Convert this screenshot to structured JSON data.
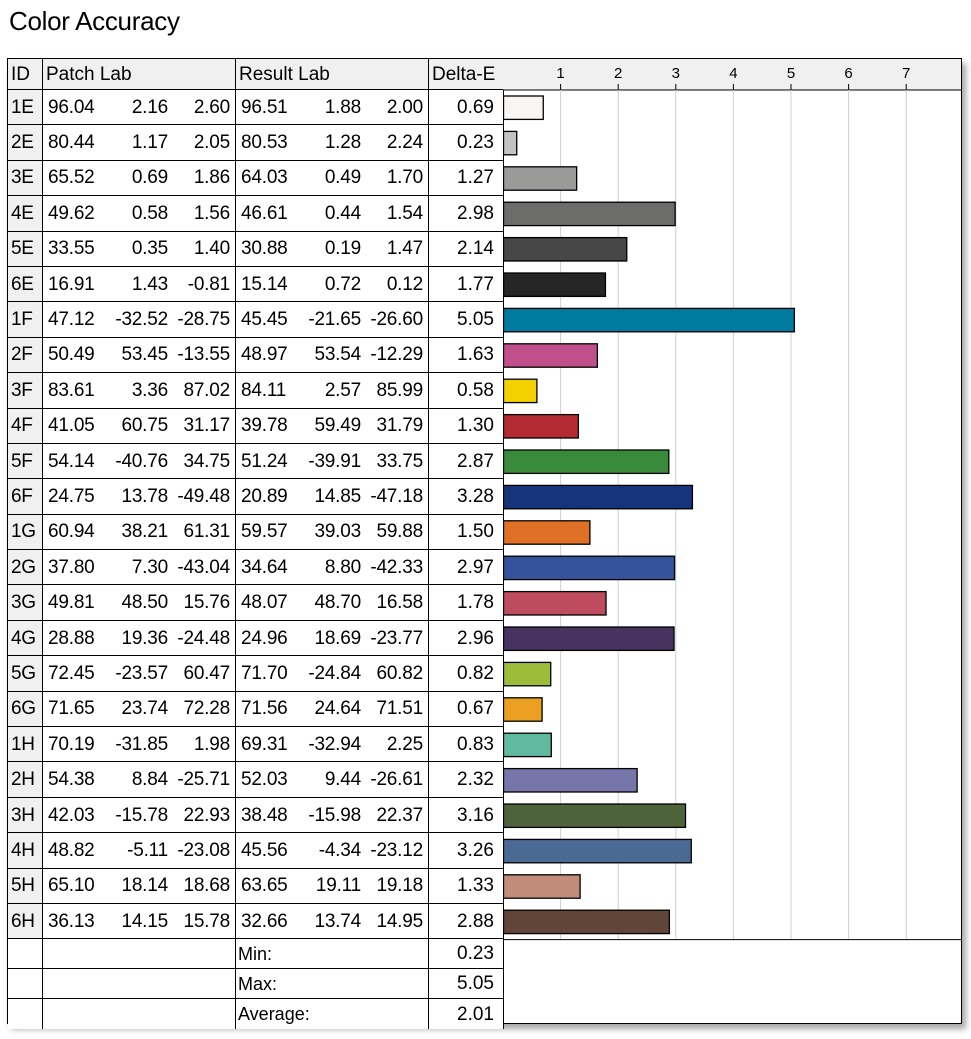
{
  "title": "Color Accuracy",
  "headers": {
    "id": "ID",
    "patch": "Patch Lab",
    "result": "Result Lab",
    "delta": "Delta-E"
  },
  "rows": [
    {
      "id": "1E",
      "patch": [
        "96.04",
        "2.16",
        "2.60"
      ],
      "result": [
        "96.51",
        "1.88",
        "2.00"
      ],
      "de": "0.69",
      "color": "#f8f5f3"
    },
    {
      "id": "2E",
      "patch": [
        "80.44",
        "1.17",
        "2.05"
      ],
      "result": [
        "80.53",
        "1.28",
        "2.24"
      ],
      "de": "0.23",
      "color": "#c4c3c1"
    },
    {
      "id": "3E",
      "patch": [
        "65.52",
        "0.69",
        "1.86"
      ],
      "result": [
        "64.03",
        "0.49",
        "1.70"
      ],
      "de": "1.27",
      "color": "#9a9a98"
    },
    {
      "id": "4E",
      "patch": [
        "49.62",
        "0.58",
        "1.56"
      ],
      "result": [
        "46.61",
        "0.44",
        "1.54"
      ],
      "de": "2.98",
      "color": "#6c6c6b"
    },
    {
      "id": "5E",
      "patch": [
        "33.55",
        "0.35",
        "1.40"
      ],
      "result": [
        "30.88",
        "0.19",
        "1.47"
      ],
      "de": "2.14",
      "color": "#474747"
    },
    {
      "id": "6E",
      "patch": [
        "16.91",
        "1.43",
        "-0.81"
      ],
      "result": [
        "15.14",
        "0.72",
        "0.12"
      ],
      "de": "1.77",
      "color": "#262626"
    },
    {
      "id": "1F",
      "patch": [
        "47.12",
        "-32.52",
        "-28.75"
      ],
      "result": [
        "45.45",
        "-21.65",
        "-26.60"
      ],
      "de": "5.05",
      "color": "#007ba0"
    },
    {
      "id": "2F",
      "patch": [
        "50.49",
        "53.45",
        "-13.55"
      ],
      "result": [
        "48.97",
        "53.54",
        "-12.29"
      ],
      "de": "1.63",
      "color": "#c04f8c"
    },
    {
      "id": "3F",
      "patch": [
        "83.61",
        "3.36",
        "87.02"
      ],
      "result": [
        "84.11",
        "2.57",
        "85.99"
      ],
      "de": "0.58",
      "color": "#f3d100"
    },
    {
      "id": "4F",
      "patch": [
        "41.05",
        "60.75",
        "31.17"
      ],
      "result": [
        "39.78",
        "59.49",
        "31.79"
      ],
      "de": "1.30",
      "color": "#b42a32"
    },
    {
      "id": "5F",
      "patch": [
        "54.14",
        "-40.76",
        "34.75"
      ],
      "result": [
        "51.24",
        "-39.91",
        "33.75"
      ],
      "de": "2.87",
      "color": "#3a8a3c"
    },
    {
      "id": "6F",
      "patch": [
        "24.75",
        "13.78",
        "-49.48"
      ],
      "result": [
        "20.89",
        "14.85",
        "-47.18"
      ],
      "de": "3.28",
      "color": "#16347a"
    },
    {
      "id": "1G",
      "patch": [
        "60.94",
        "38.21",
        "61.31"
      ],
      "result": [
        "59.57",
        "39.03",
        "59.88"
      ],
      "de": "1.50",
      "color": "#de7126"
    },
    {
      "id": "2G",
      "patch": [
        "37.80",
        "7.30",
        "-43.04"
      ],
      "result": [
        "34.64",
        "8.80",
        "-42.33"
      ],
      "de": "2.97",
      "color": "#35539c"
    },
    {
      "id": "3G",
      "patch": [
        "49.81",
        "48.50",
        "15.76"
      ],
      "result": [
        "48.07",
        "48.70",
        "16.58"
      ],
      "de": "1.78",
      "color": "#bf4c5e"
    },
    {
      "id": "4G",
      "patch": [
        "28.88",
        "19.36",
        "-24.48"
      ],
      "result": [
        "24.96",
        "18.69",
        "-23.77"
      ],
      "de": "2.96",
      "color": "#46335f"
    },
    {
      "id": "5G",
      "patch": [
        "72.45",
        "-23.57",
        "60.47"
      ],
      "result": [
        "71.70",
        "-24.84",
        "60.82"
      ],
      "de": "0.82",
      "color": "#9dbd3a"
    },
    {
      "id": "6G",
      "patch": [
        "71.65",
        "23.74",
        "72.28"
      ],
      "result": [
        "71.56",
        "24.64",
        "71.51"
      ],
      "de": "0.67",
      "color": "#eba024"
    },
    {
      "id": "1H",
      "patch": [
        "70.19",
        "-31.85",
        "1.98"
      ],
      "result": [
        "69.31",
        "-32.94",
        "2.25"
      ],
      "de": "0.83",
      "color": "#5fba9f"
    },
    {
      "id": "2H",
      "patch": [
        "54.38",
        "8.84",
        "-25.71"
      ],
      "result": [
        "52.03",
        "9.44",
        "-26.61"
      ],
      "de": "2.32",
      "color": "#7776aa"
    },
    {
      "id": "3H",
      "patch": [
        "42.03",
        "-15.78",
        "22.93"
      ],
      "result": [
        "38.48",
        "-15.98",
        "22.37"
      ],
      "de": "3.16",
      "color": "#4d633a"
    },
    {
      "id": "4H",
      "patch": [
        "48.82",
        "-5.11",
        "-23.08"
      ],
      "result": [
        "45.56",
        "-4.34",
        "-23.12"
      ],
      "de": "3.26",
      "color": "#4b6a93"
    },
    {
      "id": "5H",
      "patch": [
        "65.10",
        "18.14",
        "18.68"
      ],
      "result": [
        "63.65",
        "19.11",
        "19.18"
      ],
      "de": "1.33",
      "color": "#c28c7a"
    },
    {
      "id": "6H",
      "patch": [
        "36.13",
        "14.15",
        "15.78"
      ],
      "result": [
        "32.66",
        "13.74",
        "14.95"
      ],
      "de": "2.88",
      "color": "#614538"
    }
  ],
  "summary": [
    {
      "label": "Min:",
      "value": "0.23"
    },
    {
      "label": "Max:",
      "value": "5.05"
    },
    {
      "label": "Average:",
      "value": "2.01"
    }
  ],
  "chart_data": {
    "type": "bar",
    "orientation": "horizontal",
    "title": "Color Accuracy",
    "categories": [
      "1E",
      "2E",
      "3E",
      "4E",
      "5E",
      "6E",
      "1F",
      "2F",
      "3F",
      "4F",
      "5F",
      "6F",
      "1G",
      "2G",
      "3G",
      "4G",
      "5G",
      "6G",
      "1H",
      "2H",
      "3H",
      "4H",
      "5H",
      "6H"
    ],
    "values": [
      0.69,
      0.23,
      1.27,
      2.98,
      2.14,
      1.77,
      5.05,
      1.63,
      0.58,
      1.3,
      2.87,
      3.28,
      1.5,
      2.97,
      1.78,
      2.96,
      0.82,
      0.67,
      0.83,
      2.32,
      3.16,
      3.26,
      1.33,
      2.88
    ],
    "xlim": [
      0,
      8
    ],
    "ticks": [
      "1",
      "2",
      "3",
      "4",
      "5",
      "6",
      "7"
    ],
    "grid": true
  }
}
